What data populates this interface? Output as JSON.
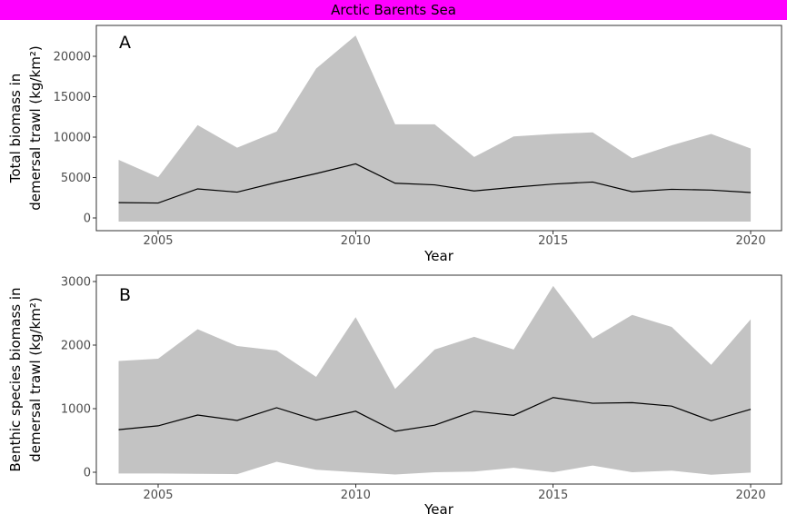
{
  "title": "Arctic Barents Sea",
  "colors": {
    "title_bg": "#FF00FF",
    "title_text": "#000000",
    "ribbon": "#C3C3C3",
    "line": "#000000",
    "axis_text": "#4D4D4D",
    "axis_title": "#000000",
    "panel_border": "#333333",
    "background": "#FFFFFF"
  },
  "x_axis": {
    "label": "Year",
    "ticks": [
      2005,
      2010,
      2015,
      2020
    ],
    "tick_labels": [
      "2005",
      "2010",
      "2015",
      "2020"
    ]
  },
  "chart_data": [
    {
      "type": "line",
      "panel_label": "A",
      "ylabel": "Total biomass in demersal trawl (kg/km²)",
      "ylabel_lines": [
        "Total biomass in",
        "demersal trawl (kg/km²)"
      ],
      "xlabel": "Year",
      "legend": "none",
      "grid": false,
      "ribbon": true,
      "xlim": [
        2003.3,
        2020.8
      ],
      "ylim": [
        -1500,
        23800
      ],
      "yticks": [
        0,
        5000,
        10000,
        15000,
        20000
      ],
      "ytick_labels": [
        "0",
        "5000",
        "10000",
        "15000",
        "20000"
      ],
      "x": [
        2004,
        2005,
        2006,
        2007,
        2008,
        2009,
        2010,
        2011,
        2012,
        2013,
        2014,
        2015,
        2016,
        2017,
        2018,
        2019,
        2020
      ],
      "series": [
        {
          "name": "mean",
          "values": [
            1900,
            1850,
            3600,
            3200,
            4400,
            5500,
            6700,
            4300,
            4100,
            3350,
            3800,
            4200,
            4450,
            3250,
            3550,
            3450,
            3150
          ]
        },
        {
          "name": "upper_band",
          "values": [
            7200,
            5050,
            11500,
            8700,
            10700,
            18500,
            22600,
            11600,
            11600,
            7550,
            10100,
            10400,
            10600,
            7400,
            9000,
            10400,
            8600
          ]
        },
        {
          "name": "lower_band",
          "values": [
            -450,
            -450,
            -450,
            -450,
            -450,
            -450,
            -450,
            -450,
            -450,
            -450,
            -450,
            -450,
            -450,
            -450,
            -450,
            -450,
            -450
          ]
        }
      ]
    },
    {
      "type": "line",
      "panel_label": "B",
      "ylabel": "Benthic species biomass in demersal trawl (kg/km²)",
      "ylabel_lines": [
        "Benthic species biomass in",
        "demersal trawl (kg/km²)"
      ],
      "xlabel": "Year",
      "legend": "none",
      "grid": false,
      "ribbon": true,
      "xlim": [
        2003.3,
        2020.8
      ],
      "ylim": [
        -185,
        3115
      ],
      "yticks": [
        0,
        1000,
        2000,
        3000
      ],
      "ytick_labels": [
        "0",
        "1000",
        "2000",
        "3000"
      ],
      "x": [
        2004,
        2005,
        2006,
        2007,
        2008,
        2009,
        2010,
        2011,
        2012,
        2013,
        2014,
        2015,
        2016,
        2017,
        2018,
        2019,
        2020
      ],
      "series": [
        {
          "name": "mean",
          "values": [
            670,
            730,
            900,
            815,
            1015,
            820,
            960,
            645,
            740,
            960,
            895,
            1175,
            1085,
            1095,
            1040,
            810,
            990
          ]
        },
        {
          "name": "upper_band",
          "values": [
            1750,
            1785,
            2250,
            1985,
            1915,
            1500,
            2440,
            1310,
            1930,
            2130,
            1930,
            2930,
            2105,
            2475,
            2285,
            1690,
            2405
          ]
        },
        {
          "name": "lower_band",
          "values": [
            -20,
            -20,
            -25,
            -30,
            165,
            40,
            0,
            -35,
            0,
            10,
            70,
            0,
            105,
            0,
            25,
            -40,
            -5
          ]
        }
      ]
    }
  ]
}
